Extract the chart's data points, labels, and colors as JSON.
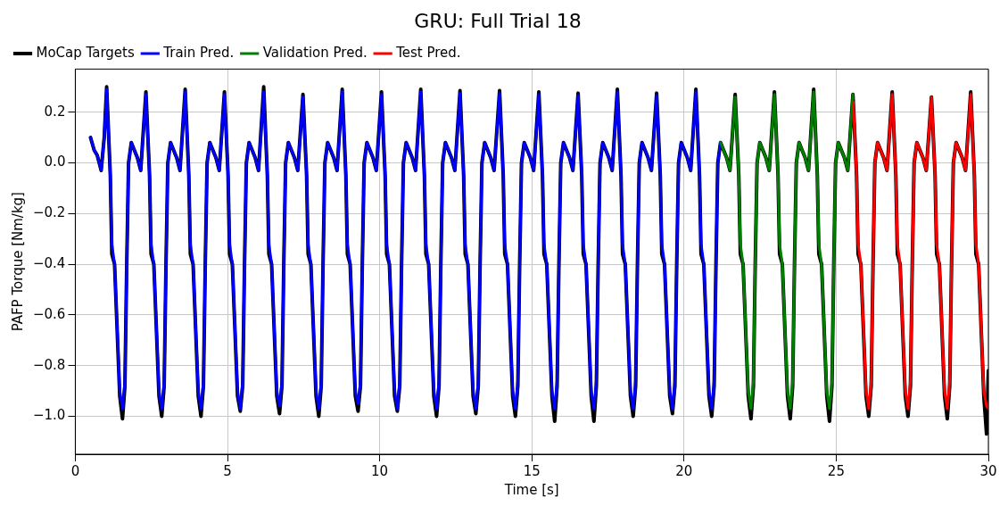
{
  "chart_data": {
    "type": "line",
    "title": "GRU: Full Trial 18",
    "xlabel": "Time [s]",
    "ylabel": "PAFP Torque [Nm/kg]",
    "xlim": [
      0,
      30
    ],
    "xticks": [
      0,
      5,
      10,
      15,
      20,
      25,
      30
    ],
    "ylim": [
      -1.15,
      0.37
    ],
    "yticks": [
      {
        "value": -1,
        "label": "−1.0"
      },
      {
        "value": -0.8,
        "label": "−0.8"
      },
      {
        "value": -0.6,
        "label": "−0.6"
      },
      {
        "value": -0.4,
        "label": "−0.4"
      },
      {
        "value": -0.2,
        "label": "−0.2"
      },
      {
        "value": 0,
        "label": "0.0"
      },
      {
        "value": 0.2,
        "label": "0.2"
      }
    ],
    "grid": true,
    "legend": "top left",
    "marker": "none",
    "line_style": "solid",
    "series": [
      {
        "name": "MoCap Targets",
        "color": "#000000",
        "x": [
          0.5,
          0.62,
          0.72,
          0.85,
          0.95,
          1.03,
          1.15,
          1.2,
          1.29,
          1.46,
          1.55,
          1.63,
          1.69,
          1.75,
          1.84,
          2.04,
          2.15,
          2.32,
          2.44,
          2.49,
          2.58,
          2.75,
          2.84,
          2.92,
          2.98,
          3.04,
          3.13,
          3.33,
          3.44,
          3.61,
          3.73,
          3.78,
          3.87,
          4.04,
          4.13,
          4.21,
          4.27,
          4.33,
          4.42,
          4.62,
          4.73,
          4.9,
          5.02,
          5.07,
          5.16,
          5.33,
          5.42,
          5.5,
          5.56,
          5.62,
          5.71,
          5.91,
          6.02,
          6.19,
          6.31,
          6.36,
          6.45,
          6.62,
          6.71,
          6.79,
          6.85,
          6.91,
          7.0,
          7.2,
          7.31,
          7.48,
          7.6,
          7.65,
          7.74,
          7.91,
          8.0,
          8.08,
          8.14,
          8.2,
          8.29,
          8.49,
          8.6,
          8.77,
          8.89,
          8.94,
          9.03,
          9.2,
          9.29,
          9.37,
          9.43,
          9.49,
          9.58,
          9.78,
          9.89,
          10.06,
          10.18,
          10.23,
          10.32,
          10.49,
          10.58,
          10.66,
          10.72,
          10.78,
          10.87,
          11.07,
          11.18,
          11.35,
          11.47,
          11.52,
          11.61,
          11.78,
          11.87,
          11.95,
          12.01,
          12.07,
          12.16,
          12.36,
          12.47,
          12.64,
          12.76,
          12.81,
          12.9,
          13.07,
          13.16,
          13.24,
          13.3,
          13.36,
          13.45,
          13.65,
          13.76,
          13.94,
          14.06,
          14.11,
          14.2,
          14.37,
          14.46,
          14.54,
          14.6,
          14.66,
          14.75,
          14.95,
          15.06,
          15.23,
          15.35,
          15.4,
          15.49,
          15.66,
          15.75,
          15.83,
          15.89,
          15.95,
          16.04,
          16.24,
          16.35,
          16.52,
          16.64,
          16.69,
          16.78,
          16.95,
          17.04,
          17.12,
          17.18,
          17.24,
          17.33,
          17.53,
          17.64,
          17.81,
          17.93,
          17.98,
          18.07,
          18.24,
          18.33,
          18.41,
          18.47,
          18.53,
          18.62,
          18.82,
          18.93,
          19.1,
          19.22,
          19.27,
          19.36,
          19.53,
          19.62,
          19.7,
          19.76,
          19.82,
          19.91,
          20.11,
          20.22,
          20.39,
          20.51,
          20.56,
          20.65,
          20.82,
          20.91,
          20.99,
          21.05,
          21.11,
          21.2,
          21.4,
          21.51,
          21.68,
          21.8,
          21.85,
          21.94,
          22.11,
          22.2,
          22.28,
          22.34,
          22.4,
          22.49,
          22.69,
          22.8,
          22.97,
          23.09,
          23.14,
          23.23,
          23.4,
          23.49,
          23.57,
          23.63,
          23.69,
          23.78,
          23.98,
          24.09,
          24.26,
          24.38,
          24.43,
          24.52,
          24.69,
          24.78,
          24.86,
          24.92,
          24.98,
          25.07,
          25.27,
          25.38,
          25.55,
          25.67,
          25.72,
          25.81,
          25.98,
          26.07,
          26.15,
          26.21,
          26.27,
          26.36,
          26.56,
          26.67,
          26.84,
          26.96,
          27.01,
          27.1,
          27.27,
          27.36,
          27.44,
          27.5,
          27.56,
          27.65,
          27.85,
          27.96,
          28.13,
          28.25,
          28.3,
          28.39,
          28.56,
          28.65,
          28.73,
          28.79,
          28.85,
          28.94,
          29.14,
          29.25,
          29.42,
          29.54,
          29.59,
          29.68,
          29.85,
          29.94,
          30.0
        ],
        "values": [
          0.1,
          0.05,
          0.03,
          -0.03,
          0.1,
          0.3,
          -0.05,
          -0.36,
          -0.4,
          -0.92,
          -1.01,
          -0.88,
          -0.4,
          0.0,
          0.08,
          0.02,
          -0.03,
          0.28,
          -0.05,
          -0.36,
          -0.4,
          -0.92,
          -1.0,
          -0.88,
          -0.4,
          0.0,
          0.08,
          0.02,
          -0.03,
          0.29,
          -0.05,
          -0.36,
          -0.4,
          -0.92,
          -1.0,
          -0.88,
          -0.4,
          0.0,
          0.08,
          0.02,
          -0.03,
          0.28,
          -0.05,
          -0.36,
          -0.4,
          -0.92,
          -0.98,
          -0.88,
          -0.4,
          0.0,
          0.08,
          0.02,
          -0.03,
          0.3,
          -0.05,
          -0.36,
          -0.4,
          -0.92,
          -0.99,
          -0.88,
          -0.4,
          0.0,
          0.08,
          0.02,
          -0.03,
          0.27,
          -0.05,
          -0.36,
          -0.4,
          -0.92,
          -1.0,
          -0.88,
          -0.4,
          0.0,
          0.08,
          0.02,
          -0.03,
          0.29,
          -0.05,
          -0.36,
          -0.4,
          -0.92,
          -0.98,
          -0.88,
          -0.4,
          0.0,
          0.08,
          0.02,
          -0.03,
          0.28,
          -0.05,
          -0.36,
          -0.4,
          -0.92,
          -0.98,
          -0.88,
          -0.4,
          0.0,
          0.08,
          0.02,
          -0.03,
          0.29,
          -0.05,
          -0.36,
          -0.4,
          -0.92,
          -1.0,
          -0.88,
          -0.4,
          0.0,
          0.08,
          0.02,
          -0.03,
          0.285,
          -0.05,
          -0.36,
          -0.4,
          -0.92,
          -0.99,
          -0.88,
          -0.4,
          0.0,
          0.08,
          0.02,
          -0.03,
          0.285,
          -0.05,
          -0.36,
          -0.4,
          -0.92,
          -1.0,
          -0.88,
          -0.4,
          0.0,
          0.08,
          0.02,
          -0.03,
          0.28,
          -0.05,
          -0.36,
          -0.4,
          -0.92,
          -1.02,
          -0.88,
          -0.4,
          0.0,
          0.08,
          0.02,
          -0.03,
          0.275,
          -0.05,
          -0.36,
          -0.4,
          -0.92,
          -1.02,
          -0.88,
          -0.4,
          0.0,
          0.08,
          0.02,
          -0.03,
          0.29,
          -0.05,
          -0.36,
          -0.4,
          -0.92,
          -1.0,
          -0.88,
          -0.4,
          0.0,
          0.08,
          0.02,
          -0.03,
          0.275,
          -0.05,
          -0.36,
          -0.4,
          -0.92,
          -0.99,
          -0.88,
          -0.4,
          0.0,
          0.08,
          0.02,
          -0.03,
          0.29,
          -0.05,
          -0.36,
          -0.4,
          -0.92,
          -1.0,
          -0.88,
          -0.4,
          0.0,
          0.08,
          0.02,
          -0.03,
          0.27,
          -0.05,
          -0.36,
          -0.4,
          -0.92,
          -1.01,
          -0.88,
          -0.4,
          0.0,
          0.08,
          0.02,
          -0.03,
          0.28,
          -0.05,
          -0.36,
          -0.4,
          -0.92,
          -1.01,
          -0.88,
          -0.4,
          0.0,
          0.08,
          0.02,
          -0.03,
          0.29,
          -0.05,
          -0.36,
          -0.4,
          -0.92,
          -1.02,
          -0.88,
          -0.4,
          0.0,
          0.08,
          0.02,
          -0.03,
          0.27,
          -0.05,
          -0.36,
          -0.4,
          -0.92,
          -1.0,
          -0.88,
          -0.4,
          0.0,
          0.08,
          0.02,
          -0.03,
          0.28,
          -0.05,
          -0.36,
          -0.4,
          -0.92,
          -1.0,
          -0.88,
          -0.4,
          0.0,
          0.08,
          0.02,
          -0.03,
          0.26,
          -0.05,
          -0.36,
          -0.4,
          -0.92,
          -1.01,
          -0.88,
          -0.4,
          0.0,
          0.08,
          0.02,
          -0.03,
          0.28,
          -0.05,
          -0.36,
          -0.4,
          -0.92,
          -1.07,
          -0.82
        ]
      },
      {
        "name": "Train Pred.",
        "color": "#0000ff",
        "x": [
          0.5,
          0.62,
          0.72,
          0.85,
          0.95,
          1.03,
          1.15,
          1.2,
          1.29,
          1.46,
          1.55,
          1.63,
          1.69,
          1.75,
          1.84,
          2.04,
          2.15,
          2.32,
          2.44,
          2.49,
          2.58,
          2.75,
          2.84,
          2.92,
          2.98,
          3.04,
          3.13,
          3.33,
          3.44,
          3.61,
          3.73,
          3.78,
          3.87,
          4.04,
          4.13,
          4.21,
          4.27,
          4.33,
          4.42,
          4.62,
          4.73,
          4.9,
          5.02,
          5.07,
          5.16,
          5.33,
          5.42,
          5.5,
          5.56,
          5.62,
          5.71,
          5.91,
          6.02,
          6.19,
          6.31,
          6.36,
          6.45,
          6.62,
          6.71,
          6.79,
          6.85,
          6.91,
          7.0,
          7.2,
          7.31,
          7.48,
          7.6,
          7.65,
          7.74,
          7.91,
          8.0,
          8.08,
          8.14,
          8.2,
          8.29,
          8.49,
          8.6,
          8.77,
          8.89,
          8.94,
          9.03,
          9.2,
          9.29,
          9.37,
          9.43,
          9.49,
          9.58,
          9.78,
          9.89,
          10.06,
          10.18,
          10.23,
          10.32,
          10.49,
          10.58,
          10.66,
          10.72,
          10.78,
          10.87,
          11.07,
          11.18,
          11.35,
          11.47,
          11.52,
          11.61,
          11.78,
          11.87,
          11.95,
          12.01,
          12.07,
          12.16,
          12.36,
          12.47,
          12.64,
          12.76,
          12.81,
          12.9,
          13.07,
          13.16,
          13.24,
          13.3,
          13.36,
          13.45,
          13.65,
          13.76,
          13.94,
          14.06,
          14.11,
          14.2,
          14.37,
          14.46,
          14.54,
          14.6,
          14.66,
          14.75,
          14.95,
          15.06,
          15.23,
          15.35,
          15.4,
          15.49,
          15.66,
          15.75,
          15.83,
          15.89,
          15.95,
          16.04,
          16.24,
          16.35,
          16.52,
          16.64,
          16.69,
          16.78,
          16.95,
          17.04,
          17.12,
          17.18,
          17.24,
          17.33,
          17.53,
          17.64,
          17.81,
          17.93,
          17.98,
          18.07,
          18.24,
          18.33,
          18.41,
          18.47,
          18.53,
          18.62,
          18.82,
          18.93,
          19.1,
          19.22,
          19.27,
          19.36,
          19.53,
          19.62,
          19.7,
          19.76,
          19.82,
          19.91,
          20.11,
          20.22,
          20.39,
          20.51,
          20.56,
          20.65,
          20.82,
          20.91,
          20.99,
          21.05,
          21.11,
          21.2
        ],
        "values": [
          0.1,
          0.05,
          0.03,
          -0.03,
          0.1,
          0.29,
          -0.05,
          -0.32,
          -0.4,
          -0.9,
          -0.97,
          -0.86,
          -0.4,
          0.0,
          0.08,
          0.02,
          -0.03,
          0.27,
          -0.05,
          -0.32,
          -0.4,
          -0.9,
          -0.97,
          -0.86,
          -0.4,
          0.0,
          0.08,
          0.02,
          -0.03,
          0.28,
          -0.05,
          -0.32,
          -0.4,
          -0.9,
          -0.97,
          -0.86,
          -0.4,
          0.0,
          0.08,
          0.02,
          -0.03,
          0.27,
          -0.05,
          -0.32,
          -0.4,
          -0.9,
          -0.97,
          -0.86,
          -0.4,
          0.0,
          0.08,
          0.02,
          -0.03,
          0.28,
          -0.05,
          -0.32,
          -0.4,
          -0.9,
          -0.96,
          -0.86,
          -0.4,
          0.0,
          0.08,
          0.02,
          -0.03,
          0.26,
          -0.05,
          -0.32,
          -0.4,
          -0.9,
          -0.97,
          -0.86,
          -0.4,
          0.0,
          0.08,
          0.02,
          -0.03,
          0.28,
          -0.05,
          -0.32,
          -0.4,
          -0.9,
          -0.95,
          -0.86,
          -0.4,
          0.0,
          0.08,
          0.02,
          -0.03,
          0.27,
          -0.05,
          -0.32,
          -0.4,
          -0.9,
          -0.97,
          -0.86,
          -0.4,
          0.0,
          0.08,
          0.02,
          -0.03,
          0.28,
          -0.05,
          -0.32,
          -0.4,
          -0.9,
          -0.97,
          -0.86,
          -0.4,
          0.0,
          0.08,
          0.02,
          -0.03,
          0.275,
          -0.05,
          -0.32,
          -0.4,
          -0.9,
          -0.97,
          -0.86,
          -0.4,
          0.0,
          0.08,
          0.02,
          -0.03,
          0.275,
          -0.05,
          -0.32,
          -0.4,
          -0.9,
          -0.97,
          -0.86,
          -0.4,
          0.0,
          0.08,
          0.02,
          -0.03,
          0.27,
          -0.05,
          -0.32,
          -0.4,
          -0.9,
          -0.97,
          -0.86,
          -0.4,
          0.0,
          0.08,
          0.02,
          -0.03,
          0.265,
          -0.05,
          -0.32,
          -0.4,
          -0.9,
          -0.97,
          -0.86,
          -0.4,
          0.0,
          0.08,
          0.02,
          -0.03,
          0.28,
          -0.05,
          -0.32,
          -0.4,
          -0.9,
          -0.97,
          -0.86,
          -0.4,
          0.0,
          0.08,
          0.02,
          -0.03,
          0.265,
          -0.05,
          -0.32,
          -0.4,
          -0.9,
          -0.97,
          -0.86,
          -0.4,
          0.0,
          0.08,
          0.02,
          -0.03,
          0.28,
          -0.05,
          -0.32,
          -0.4,
          -0.9,
          -0.97,
          -0.86,
          -0.4,
          0.0,
          0.08
        ]
      },
      {
        "name": "Validation Pred.",
        "color": "#008000",
        "x": [
          21.2,
          21.4,
          21.51,
          21.68,
          21.8,
          21.85,
          21.94,
          22.11,
          22.2,
          22.28,
          22.34,
          22.4,
          22.49,
          22.69,
          22.8,
          22.97,
          23.09,
          23.14,
          23.23,
          23.4,
          23.49,
          23.57,
          23.63,
          23.69,
          23.78,
          23.98,
          24.09,
          24.26,
          24.38,
          24.43,
          24.52,
          24.69,
          24.78,
          24.86,
          24.92,
          24.98,
          25.07,
          25.27,
          25.38,
          25.55
        ],
        "values": [
          0.08,
          0.02,
          -0.03,
          0.26,
          -0.05,
          -0.32,
          -0.4,
          -0.9,
          -0.97,
          -0.86,
          -0.4,
          0.0,
          0.08,
          0.02,
          -0.03,
          0.27,
          -0.05,
          -0.32,
          -0.4,
          -0.9,
          -0.97,
          -0.86,
          -0.4,
          0.0,
          0.08,
          0.02,
          -0.03,
          0.28,
          -0.05,
          -0.32,
          -0.4,
          -0.9,
          -0.97,
          -0.86,
          -0.4,
          0.0,
          0.08,
          0.02,
          -0.03,
          0.27
        ]
      },
      {
        "name": "Test Pred.",
        "color": "#ff0000",
        "x": [
          25.56,
          25.67,
          25.72,
          25.81,
          25.98,
          26.07,
          26.15,
          26.21,
          26.27,
          26.36,
          26.56,
          26.67,
          26.84,
          26.96,
          27.01,
          27.1,
          27.27,
          27.36,
          27.44,
          27.5,
          27.56,
          27.65,
          27.85,
          27.96,
          28.13,
          28.25,
          28.3,
          28.39,
          28.56,
          28.65,
          28.73,
          28.79,
          28.85,
          28.94,
          29.14,
          29.25,
          29.42,
          29.54,
          29.59,
          29.68,
          29.85,
          29.94,
          30.0
        ],
        "values": [
          0.24,
          -0.05,
          -0.32,
          -0.4,
          -0.9,
          -0.97,
          -0.86,
          -0.4,
          0.0,
          0.08,
          0.02,
          -0.03,
          0.27,
          -0.05,
          -0.32,
          -0.4,
          -0.9,
          -0.97,
          -0.86,
          -0.4,
          0.0,
          0.08,
          0.02,
          -0.03,
          0.26,
          -0.05,
          -0.32,
          -0.4,
          -0.9,
          -0.97,
          -0.86,
          -0.4,
          0.0,
          0.08,
          0.02,
          -0.03,
          0.27,
          -0.05,
          -0.32,
          -0.4,
          -0.9,
          -0.96,
          -0.97
        ]
      }
    ]
  }
}
